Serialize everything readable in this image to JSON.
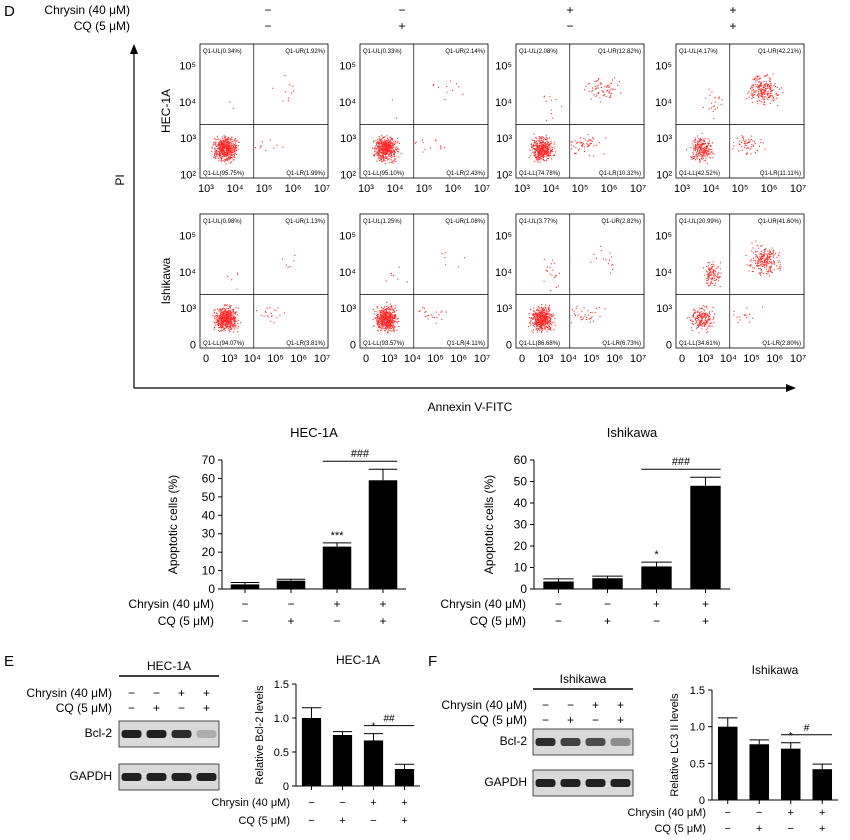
{
  "panels": {
    "D": {
      "label": "D",
      "treatment_header": {
        "rows": [
          {
            "name": "Chrysin (40 μM)",
            "values": [
              "−",
              "−",
              "+",
              "+"
            ]
          },
          {
            "name": "CQ (5 μM)",
            "values": [
              "−",
              "+",
              "−",
              "+"
            ]
          }
        ]
      },
      "flow": {
        "y_axis_label": "PI",
        "x_axis_label": "Annexin V-FITC",
        "rows": [
          {
            "cell_line": "HEC-1A",
            "y_ticks": [
              "10²",
              "10³",
              "10⁴",
              "10⁵"
            ],
            "x_ticks": [
              "10³",
              "10⁴",
              "10⁵",
              "10⁶",
              "10⁷"
            ],
            "plots": [
              {
                "UL": "Q1-UL(0.34%)",
                "UR": "Q1-UR(1.92%)",
                "LL": "Q1-LL(95.75%)",
                "LR": "Q1-LR(1.99%)"
              },
              {
                "UL": "Q1-UL(0.33%)",
                "UR": "Q1-UR(2.14%)",
                "LL": "Q1-LL(95.10%)",
                "LR": "Q1-LR(2.43%)"
              },
              {
                "UL": "Q1-UL(2.08%)",
                "UR": "Q1-UR(12.82%)",
                "LL": "Q1-LL(74.78%)",
                "LR": "Q1-LR(10.32%)"
              },
              {
                "UL": "Q1-UL(4.17%)",
                "UR": "Q1-UR(42.21%)",
                "LL": "Q1-LL(42.52%)",
                "LR": "Q1-LR(11.11%)"
              }
            ]
          },
          {
            "cell_line": "Ishikawa",
            "y_ticks": [
              "0",
              "10³",
              "10⁴",
              "10⁵"
            ],
            "x_ticks": [
              "0",
              "10³",
              "10⁴",
              "10⁵",
              "10⁶",
              "10⁷"
            ],
            "plots": [
              {
                "UL": "Q1-UL(0.98%)",
                "UR": "Q1-UR(1.13%)",
                "LL": "Q1-LL(94.07%)",
                "LR": "Q1-LR(3.81%)"
              },
              {
                "UL": "Q1-UL(1.25%)",
                "UR": "Q1-UR(1.08%)",
                "LL": "Q1-LL(93.57%)",
                "LR": "Q1-LR(4.11%)"
              },
              {
                "UL": "Q1-UL(3.77%)",
                "UR": "Q1-UR(2.82%)",
                "LL": "Q1-LL(86.68%)",
                "LR": "Q1-LR(6.73%)"
              },
              {
                "UL": "Q1-UL(20.99%)",
                "UR": "Q1-UR(41.60%)",
                "LL": "Q1-LL(34.61%)",
                "LR": "Q1-LR(2.80%)"
              }
            ]
          }
        ]
      }
    },
    "E": {
      "label": "E",
      "blot": {
        "title": "HEC-1A",
        "row_labels": [
          "Chrysin (40 μM)",
          "CQ (5 μM)"
        ],
        "row_values": [
          [
            "−",
            "−",
            "+",
            "+"
          ],
          [
            "−",
            "+",
            "−",
            "+"
          ]
        ],
        "bands": [
          "Bcl-2",
          "GAPDH"
        ]
      }
    },
    "F": {
      "label": "F",
      "blot": {
        "title": "Ishikawa",
        "row_labels": [
          "Chrysin (40 μM)",
          "CQ (5 μM)"
        ],
        "row_values": [
          [
            "−",
            "−",
            "+",
            "+"
          ],
          [
            "−",
            "+",
            "−",
            "+"
          ]
        ],
        "bands": [
          "Bcl-2",
          "GAPDH"
        ]
      }
    }
  },
  "bar_colors": {
    "bar": "#000000",
    "scatter": "#ff2a2a"
  },
  "chart_data": [
    {
      "type": "bar",
      "title": "HEC-1A",
      "ylabel": "Apoptotic cells (%)",
      "xlabel": "",
      "ylim": [
        0,
        70
      ],
      "yticks": [
        0,
        10,
        20,
        30,
        40,
        50,
        60,
        70
      ],
      "categories": [
        "1",
        "2",
        "3",
        "4"
      ],
      "treatment_rows": [
        {
          "name": "Chrysin (40 μM)",
          "values": [
            "−",
            "−",
            "+",
            "+"
          ]
        },
        {
          "name": "CQ (5 μM)",
          "values": [
            "−",
            "+",
            "−",
            "+"
          ]
        }
      ],
      "values": [
        2.5,
        4.5,
        23,
        59
      ],
      "errors": [
        1,
        0.8,
        2,
        6
      ],
      "annotations": [
        {
          "bar": 2,
          "text": "***"
        }
      ],
      "bracket": {
        "from": 2,
        "to": 3,
        "text": "###"
      }
    },
    {
      "type": "bar",
      "title": "Ishikawa",
      "ylabel": "Apoptotic cells (%)",
      "xlabel": "",
      "ylim": [
        0,
        60
      ],
      "yticks": [
        0,
        10,
        20,
        30,
        40,
        50,
        60
      ],
      "categories": [
        "1",
        "2",
        "3",
        "4"
      ],
      "treatment_rows": [
        {
          "name": "Chrysin (40 μM)",
          "values": [
            "−",
            "−",
            "+",
            "+"
          ]
        },
        {
          "name": "CQ (5 μM)",
          "values": [
            "−",
            "+",
            "−",
            "+"
          ]
        }
      ],
      "values": [
        3.5,
        5,
        10.5,
        48
      ],
      "errors": [
        1.2,
        1,
        2,
        4
      ],
      "annotations": [
        {
          "bar": 2,
          "text": "*"
        }
      ],
      "bracket": {
        "from": 2,
        "to": 3,
        "text": "###"
      }
    },
    {
      "type": "bar",
      "title": "HEC-1A",
      "ylabel": "Relative Bcl-2 levels",
      "xlabel": "",
      "ylim": [
        0,
        1.5
      ],
      "yticks": [
        0,
        0.5,
        1.0,
        1.5
      ],
      "ytick_labels": [
        "0",
        "0.5",
        "1.0",
        "1.5"
      ],
      "categories": [
        "1",
        "2",
        "3",
        "4"
      ],
      "treatment_rows": [
        {
          "name": "Chrysin (40 μM)",
          "values": [
            "−",
            "−",
            "+",
            "+"
          ]
        },
        {
          "name": "CQ (5 μM)",
          "values": [
            "−",
            "+",
            "−",
            "+"
          ]
        }
      ],
      "values": [
        1.0,
        0.75,
        0.67,
        0.25
      ],
      "errors": [
        0.15,
        0.05,
        0.1,
        0.07
      ],
      "annotations": [
        {
          "bar": 2,
          "text": "*"
        }
      ],
      "bracket": {
        "from": 2,
        "to": 3,
        "text": "##"
      }
    },
    {
      "type": "bar",
      "title": "Ishikawa",
      "ylabel": "Relative LC3 II levels",
      "xlabel": "",
      "ylim": [
        0,
        1.5
      ],
      "yticks": [
        0,
        0.5,
        1.0,
        1.5
      ],
      "ytick_labels": [
        "0",
        "0.5",
        "1.0",
        "1.5"
      ],
      "categories": [
        "1",
        "2",
        "3",
        "4"
      ],
      "treatment_rows": [
        {
          "name": "Chrysin (40 μM)",
          "values": [
            "−",
            "−",
            "+",
            "+"
          ]
        },
        {
          "name": "CQ (5 μM)",
          "values": [
            "−",
            "+",
            "−",
            "+"
          ]
        }
      ],
      "values": [
        1.0,
        0.76,
        0.7,
        0.42
      ],
      "errors": [
        0.12,
        0.06,
        0.08,
        0.07
      ],
      "annotations": [
        {
          "bar": 2,
          "text": "*"
        }
      ],
      "bracket": {
        "from": 2,
        "to": 3,
        "text": "#"
      }
    }
  ]
}
